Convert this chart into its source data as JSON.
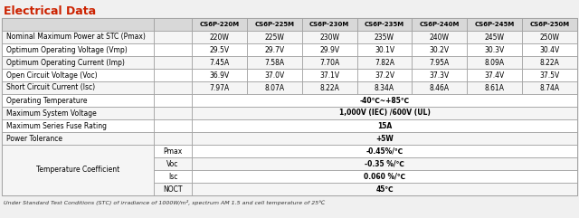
{
  "title": "Electrical Data",
  "title_color": "#CC2200",
  "bg_color": "#F0F0F0",
  "header_bg": "#D8D8D8",
  "white_bg": "#FFFFFF",
  "odd_row_bg": "#F5F5F5",
  "even_row_bg": "#FFFFFF",
  "border_color": "#999999",
  "columns": [
    "CS6P-220M",
    "CS6P-225M",
    "CS6P-230M",
    "CS6P-235M",
    "CS6P-240M",
    "CS6P-245M",
    "CS6P-250M"
  ],
  "rows": [
    {
      "label": "Nominal Maximum Power at STC (Pmax)",
      "sub": "",
      "values": [
        "220W",
        "225W",
        "230W",
        "235W",
        "240W",
        "245W",
        "250W"
      ],
      "span": false,
      "bold_val": false
    },
    {
      "label": "Optimum Operating Voltage (Vmp)",
      "sub": "",
      "values": [
        "29.5V",
        "29.7V",
        "29.9V",
        "30.1V",
        "30.2V",
        "30.3V",
        "30.4V"
      ],
      "span": false,
      "bold_val": false
    },
    {
      "label": "Optimum Operating Current (Imp)",
      "sub": "",
      "values": [
        "7.45A",
        "7.58A",
        "7.70A",
        "7.82A",
        "7.95A",
        "8.09A",
        "8.22A"
      ],
      "span": false,
      "bold_val": false
    },
    {
      "label": "Open Circuit Voltage (Voc)",
      "sub": "",
      "values": [
        "36.9V",
        "37.0V",
        "37.1V",
        "37.2V",
        "37.3V",
        "37.4V",
        "37.5V"
      ],
      "span": false,
      "bold_val": false
    },
    {
      "label": "Short Circuit Current (Isc)",
      "sub": "",
      "values": [
        "7.97A",
        "8.07A",
        "8.22A",
        "8.34A",
        "8.46A",
        "8.61A",
        "8.74A"
      ],
      "span": false,
      "bold_val": false
    },
    {
      "label": "Operating Temperature",
      "sub": "",
      "values": [
        "-40℃~+85℃"
      ],
      "span": true,
      "bold_val": true
    },
    {
      "label": "Maximum System Voltage",
      "sub": "",
      "values": [
        "1,000V (IEC) /600V (UL)"
      ],
      "span": true,
      "bold_val": true
    },
    {
      "label": "Maximum Series Fuse Rating",
      "sub": "",
      "values": [
        "15A"
      ],
      "span": true,
      "bold_val": true
    },
    {
      "label": "Power Tolerance",
      "sub": "",
      "values": [
        "+5W"
      ],
      "span": true,
      "bold_val": true
    },
    {
      "label": "Temperature Coefficient",
      "sub": "Pmax",
      "values": [
        "-0.45%/℃"
      ],
      "span": true,
      "bold_val": true
    },
    {
      "label": "",
      "sub": "Voc",
      "values": [
        "-0.35 %/℃"
      ],
      "span": true,
      "bold_val": true
    },
    {
      "label": "",
      "sub": "Isc",
      "values": [
        "0.060 %/℃"
      ],
      "span": true,
      "bold_val": true
    },
    {
      "label": "",
      "sub": "NOCT",
      "values": [
        "45℃"
      ],
      "span": true,
      "bold_val": true
    }
  ],
  "footer": "Under Standard Test Conditions (STC) of irradiance of 1000W/m², spectrum AM 1.5 and cell temperature of 25℃"
}
